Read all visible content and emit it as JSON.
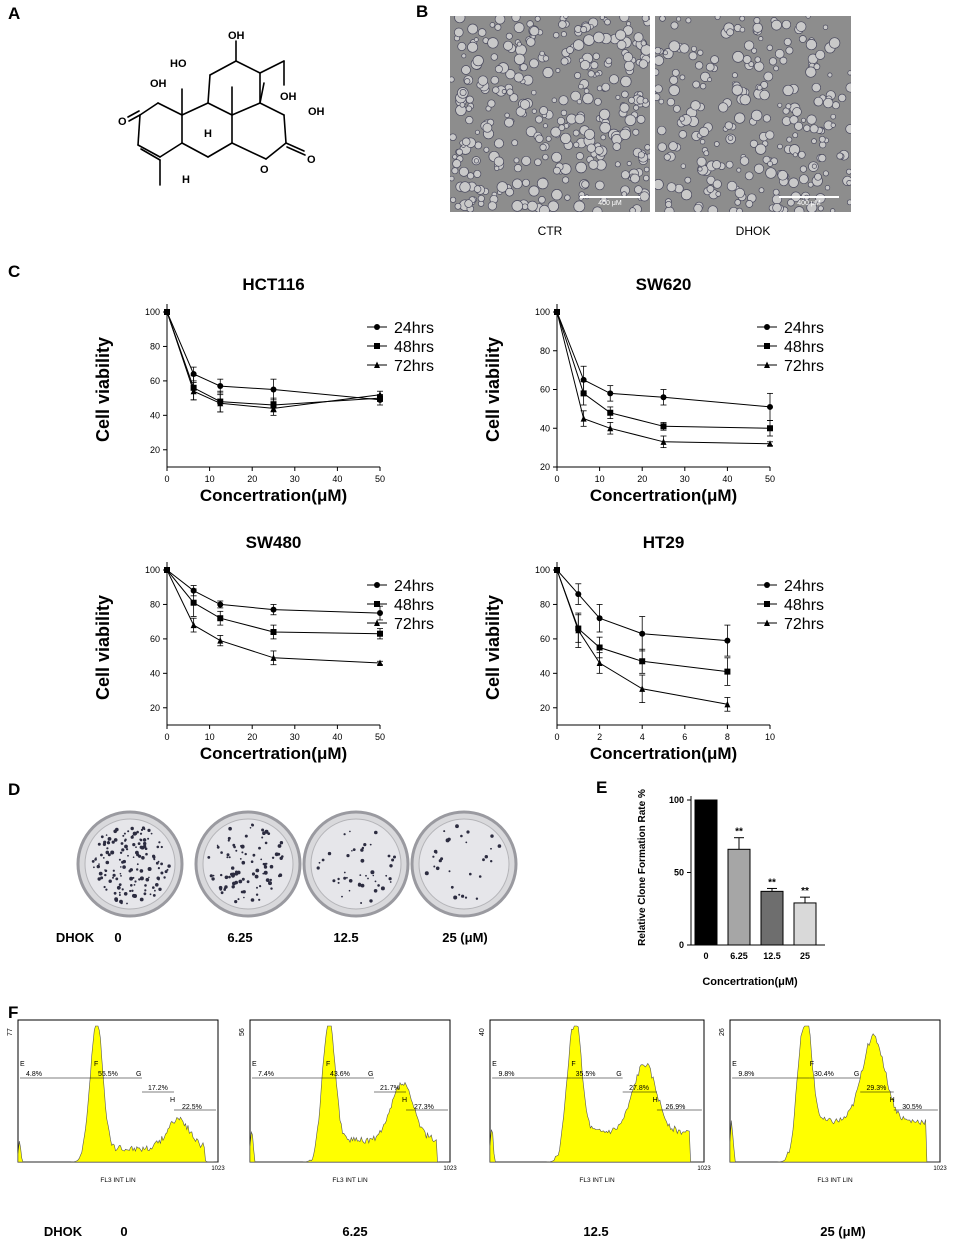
{
  "panels": {
    "A": "A",
    "B": "B",
    "C": "C",
    "D": "D",
    "E": "E",
    "F": "F"
  },
  "panel_b": {
    "images": [
      {
        "caption": "CTR",
        "scalebar": "400 μM"
      },
      {
        "caption": "DHOK",
        "scalebar": "400 μM"
      }
    ]
  },
  "structure": {
    "labels": [
      "OH",
      "HO",
      "OH",
      "OH",
      "OH",
      "H",
      "H",
      "O",
      "O",
      "O"
    ]
  },
  "panel_d": {
    "row_label": "DHOK",
    "doses": [
      "0",
      "6.25",
      "12.5",
      "25 (μM)"
    ]
  },
  "panel_f": {
    "row_label": "DHOK",
    "doses": [
      "0",
      "6.25",
      "12.5",
      "25 (μM)"
    ]
  },
  "chart_data": [
    {
      "type": "line",
      "title": "HCT116",
      "xlabel": "Concertration(μM)",
      "ylabel": "Cell viability",
      "xlim": [
        0,
        50
      ],
      "ylim": [
        10,
        100
      ],
      "xticks": [
        0,
        10,
        20,
        30,
        40,
        50
      ],
      "yticks": [
        20,
        40,
        60,
        80,
        100
      ],
      "x": [
        0,
        6.25,
        12.5,
        25,
        50
      ],
      "series": [
        {
          "name": "24hrs",
          "marker": "circle",
          "values": [
            100,
            64,
            57,
            55,
            49
          ],
          "err": [
            0,
            4,
            4,
            6,
            3
          ]
        },
        {
          "name": "48hrs",
          "marker": "square",
          "values": [
            100,
            56,
            48,
            46,
            50
          ],
          "err": [
            0,
            7,
            6,
            4,
            2
          ]
        },
        {
          "name": "72hrs",
          "marker": "triangle",
          "values": [
            100,
            54,
            47,
            44,
            52
          ],
          "err": [
            0,
            5,
            5,
            4,
            2
          ]
        }
      ]
    },
    {
      "type": "line",
      "title": "SW620",
      "xlabel": "Concertration(μM)",
      "ylabel": "Cell viability",
      "xlim": [
        0,
        50
      ],
      "ylim": [
        20,
        100
      ],
      "xticks": [
        0,
        10,
        20,
        30,
        40,
        50
      ],
      "yticks": [
        20,
        40,
        60,
        80,
        100
      ],
      "x": [
        0,
        6.25,
        12.5,
        25,
        50
      ],
      "series": [
        {
          "name": "24hrs",
          "marker": "circle",
          "values": [
            100,
            65,
            58,
            56,
            51
          ],
          "err": [
            0,
            7,
            4,
            4,
            7
          ]
        },
        {
          "name": "48hrs",
          "marker": "square",
          "values": [
            100,
            58,
            48,
            41,
            40
          ],
          "err": [
            0,
            6,
            3,
            2,
            4
          ]
        },
        {
          "name": "72hrs",
          "marker": "triangle",
          "values": [
            100,
            45,
            40,
            33,
            32
          ],
          "err": [
            0,
            4,
            3,
            3,
            1
          ]
        }
      ]
    },
    {
      "type": "line",
      "title": "SW480",
      "xlabel": "Concertration(μM)",
      "ylabel": "Cell viability",
      "xlim": [
        0,
        50
      ],
      "ylim": [
        10,
        100
      ],
      "xticks": [
        0,
        10,
        20,
        30,
        40,
        50
      ],
      "yticks": [
        20,
        40,
        60,
        80,
        100
      ],
      "x": [
        0,
        6.25,
        12.5,
        25,
        50
      ],
      "series": [
        {
          "name": "24hrs",
          "marker": "circle",
          "values": [
            100,
            88,
            80,
            77,
            75
          ],
          "err": [
            0,
            3,
            2,
            3,
            4
          ]
        },
        {
          "name": "48hrs",
          "marker": "square",
          "values": [
            100,
            81,
            72,
            64,
            63
          ],
          "err": [
            0,
            8,
            4,
            4,
            3
          ]
        },
        {
          "name": "72hrs",
          "marker": "triangle",
          "values": [
            100,
            68,
            59,
            49,
            46
          ],
          "err": [
            0,
            4,
            3,
            4,
            1
          ]
        }
      ]
    },
    {
      "type": "line",
      "title": "HT29",
      "xlabel": "Concertration(μM)",
      "ylabel": "Cell viability",
      "xlim": [
        0,
        10
      ],
      "ylim": [
        10,
        100
      ],
      "xticks": [
        0,
        2,
        4,
        6,
        8,
        10
      ],
      "yticks": [
        20,
        40,
        60,
        80,
        100
      ],
      "x": [
        0,
        1,
        2,
        4,
        8
      ],
      "series": [
        {
          "name": "24hrs",
          "marker": "circle",
          "values": [
            100,
            86,
            72,
            63,
            59
          ],
          "err": [
            0,
            6,
            8,
            10,
            9
          ]
        },
        {
          "name": "48hrs",
          "marker": "square",
          "values": [
            100,
            66,
            55,
            47,
            41
          ],
          "err": [
            0,
            8,
            6,
            7,
            8
          ]
        },
        {
          "name": "72hrs",
          "marker": "triangle",
          "values": [
            100,
            65,
            46,
            31,
            22
          ],
          "err": [
            0,
            10,
            6,
            8,
            4
          ]
        }
      ]
    },
    {
      "type": "bar",
      "title": "",
      "xlabel": "Concertration(μM)",
      "ylabel": "Relative Clone Formation Rate %",
      "ylim": [
        0,
        100
      ],
      "yticks": [
        0,
        50,
        100
      ],
      "categories": [
        "0",
        "6.25",
        "12.5",
        "25"
      ],
      "values": [
        100,
        66,
        37,
        29
      ],
      "err": [
        0,
        8,
        2,
        4
      ],
      "significance": [
        "",
        "**",
        "**",
        "**"
      ],
      "colors": [
        "#000000",
        "#a6a6a6",
        "#6e6e6e",
        "#d9d9d9"
      ]
    },
    {
      "type": "area",
      "title": "",
      "xlabel": "FL3 INT LIN",
      "ylabel": "",
      "fill": "#ffff00",
      "histograms": [
        {
          "dose": "0",
          "ymax": "77",
          "xmax": "1023",
          "gates": {
            "E": "4.8%",
            "F": "55.5%",
            "G": "17.2%",
            "H": "22.5%"
          }
        },
        {
          "dose": "6.25",
          "ymax": "56",
          "xmax": "1023",
          "gates": {
            "E": "7.4%",
            "F": "43.6%",
            "G": "21.7%",
            "H": "27.3%"
          }
        },
        {
          "dose": "12.5",
          "ymax": "40",
          "xmax": "1023",
          "gates": {
            "E": "9.8%",
            "F": "35.5%",
            "G": "27.8%",
            "H": "26.9%"
          }
        },
        {
          "dose": "25",
          "ymax": "26",
          "xmax": "1023",
          "gates": {
            "E": "9.8%",
            "F": "30.4%",
            "G": "29.3%",
            "H": "30.5%"
          }
        }
      ]
    }
  ]
}
